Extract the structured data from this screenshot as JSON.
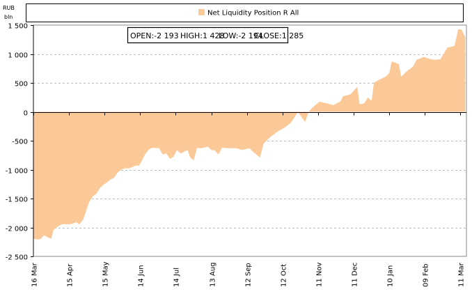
{
  "chart_data": {
    "type": "area",
    "title": "",
    "ylabel": "RUB bln",
    "ylabel_lines": [
      "RUB",
      "bln"
    ],
    "xlabel": "",
    "ylim": [
      -2500,
      1500
    ],
    "xlim": [
      0,
      365
    ],
    "x_unit": "days since 16 Mar",
    "yticks": [
      1500,
      1000,
      500,
      0,
      -500,
      -1000,
      -1500,
      -2000,
      -2500
    ],
    "ytick_labels": [
      "1 500",
      "1 000",
      "500",
      "0",
      "-500",
      "-1 000",
      "-1 500",
      "-2 000",
      "-2 500"
    ],
    "xticks": [
      0,
      30,
      60,
      90,
      120,
      150,
      180,
      210,
      240,
      270,
      300,
      330,
      360
    ],
    "xtick_labels": [
      "16 Mar",
      "15 Apr",
      "15 May",
      "14 Jun",
      "14 Jul",
      "13 Aug",
      "12 Sep",
      "12 Oct",
      "11 Nov",
      "11 Dec",
      "10 Jan",
      "09 Feb",
      "11 Mar"
    ],
    "grid": "horizontal dashed",
    "legend": {
      "position": "top",
      "entries": [
        "Net Liquidity Position R All"
      ]
    },
    "stats": {
      "open": "OPEN:-2 193",
      "high": "HIGH:1 428",
      "low": "LOW:-2 194",
      "close": "CLOSE:1 285"
    },
    "color": "#fbc997",
    "series": [
      {
        "name": "Net Liquidity Position R All",
        "x": [
          0,
          4,
          6,
          9,
          12,
          15,
          17,
          21,
          24,
          30,
          33,
          36,
          39,
          42,
          45,
          47,
          50,
          53,
          56,
          59,
          62,
          65,
          68,
          71,
          74,
          77,
          80,
          83,
          86,
          89,
          91,
          94,
          97,
          100,
          106,
          109,
          112,
          115,
          118,
          121,
          124,
          130,
          132,
          135,
          138,
          141,
          144,
          147,
          150,
          153,
          156,
          159,
          165,
          171,
          176,
          182,
          185,
          191,
          194,
          200,
          206,
          212,
          217,
          223,
          229,
          232,
          235,
          241,
          247,
          253,
          259,
          261,
          267,
          273,
          275,
          279,
          282,
          285,
          287,
          291,
          297,
          300,
          302,
          305,
          308,
          310,
          314,
          320,
          323,
          329,
          335,
          338,
          343,
          349,
          355,
          358,
          361,
          364
        ],
        "values": [
          -2193,
          -2210,
          -2200,
          -2135,
          -2170,
          -2194,
          -2040,
          -1980,
          -1945,
          -1945,
          -1935,
          -1910,
          -1945,
          -1860,
          -1680,
          -1560,
          -1460,
          -1420,
          -1320,
          -1260,
          -1220,
          -1170,
          -1140,
          -1050,
          -1000,
          -980,
          -980,
          -960,
          -930,
          -930,
          -860,
          -740,
          -660,
          -620,
          -630,
          -740,
          -720,
          -810,
          -780,
          -660,
          -720,
          -660,
          -780,
          -840,
          -620,
          -630,
          -620,
          -600,
          -660,
          -670,
          -740,
          -620,
          -630,
          -630,
          -660,
          -630,
          -690,
          -790,
          -550,
          -430,
          -340,
          -270,
          -190,
          0,
          -175,
          0,
          70,
          175,
          150,
          115,
          185,
          270,
          300,
          430,
          130,
          150,
          250,
          185,
          500,
          550,
          610,
          670,
          870,
          850,
          825,
          610,
          690,
          780,
          900,
          950,
          910,
          900,
          910,
          1110,
          1140,
          1428,
          1420,
          1285
        ]
      }
    ]
  }
}
